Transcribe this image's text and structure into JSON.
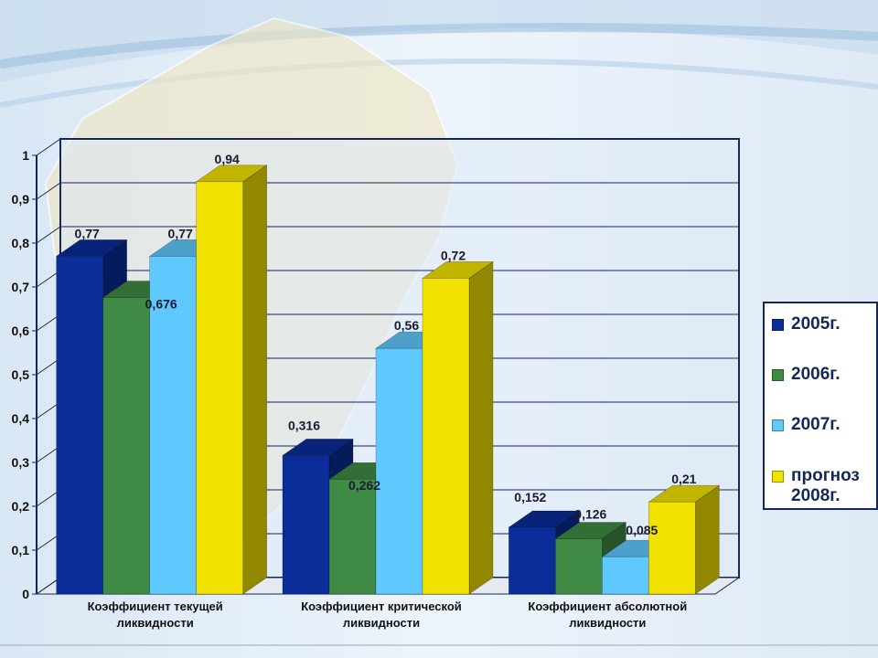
{
  "chart_data": {
    "type": "bar",
    "categories": [
      "Коэффициент текущей\nликвидности",
      "Коэффициент критической\nликвидности",
      "Коэффициент абсолютной\nликвидности"
    ],
    "series": [
      {
        "name": "2005г.",
        "color": "#0a2d99",
        "values": [
          0.77,
          0.316,
          0.152
        ],
        "labels": [
          "0,77",
          "0,316",
          "0,152"
        ]
      },
      {
        "name": "2006г.",
        "color": "#3f8a44",
        "values": [
          0.676,
          0.262,
          0.126
        ],
        "labels": [
          "0,676",
          "0,262",
          "0,126"
        ]
      },
      {
        "name": "2007г.",
        "color": "#5fc8fc",
        "values": [
          0.77,
          0.56,
          0.085
        ],
        "labels": [
          "0,77",
          "0,56",
          "0,085"
        ]
      },
      {
        "name": "прогноз\n2008г.",
        "color": "#f2e200",
        "values": [
          0.94,
          0.72,
          0.21
        ],
        "labels": [
          "0,94",
          "0,72",
          "0,21"
        ]
      }
    ],
    "ylim": [
      0,
      1
    ],
    "yticks": [
      0,
      0.1,
      0.2,
      0.3,
      0.4,
      0.5,
      0.6,
      0.7,
      0.8,
      0.9,
      1
    ],
    "ytick_labels": [
      "0",
      "0,1",
      "0,2",
      "0,3",
      "0,4",
      "0,5",
      "0,6",
      "0,7",
      "0,8",
      "0,9",
      "1"
    ],
    "grid": true,
    "legend_position": "right",
    "style": "3d-clustered-column"
  }
}
